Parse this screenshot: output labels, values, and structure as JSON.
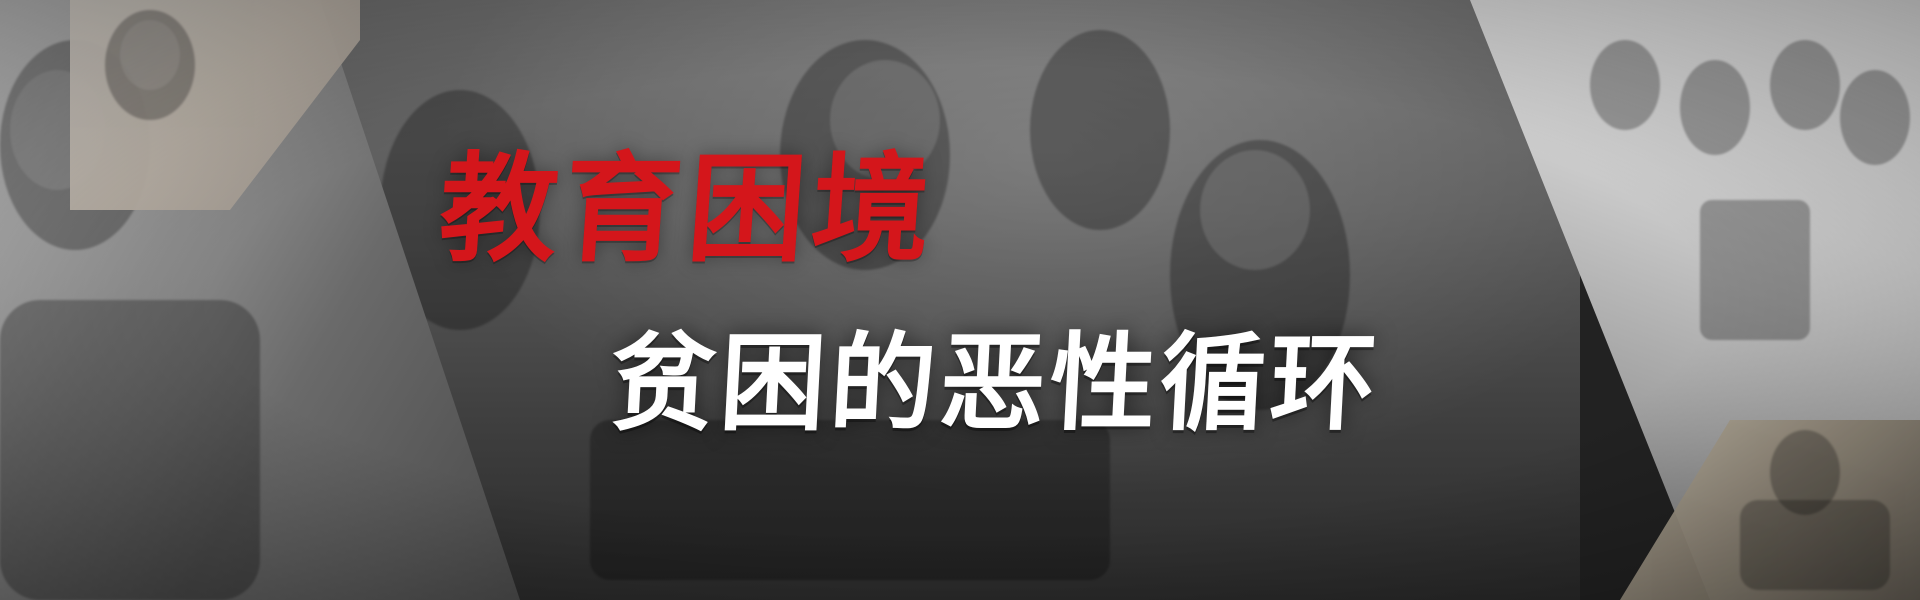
{
  "banner": {
    "title": "教育困境",
    "subtitle": "贫困的恶性循环",
    "title_color": "#d4161b",
    "subtitle_color": "#ffffff"
  }
}
